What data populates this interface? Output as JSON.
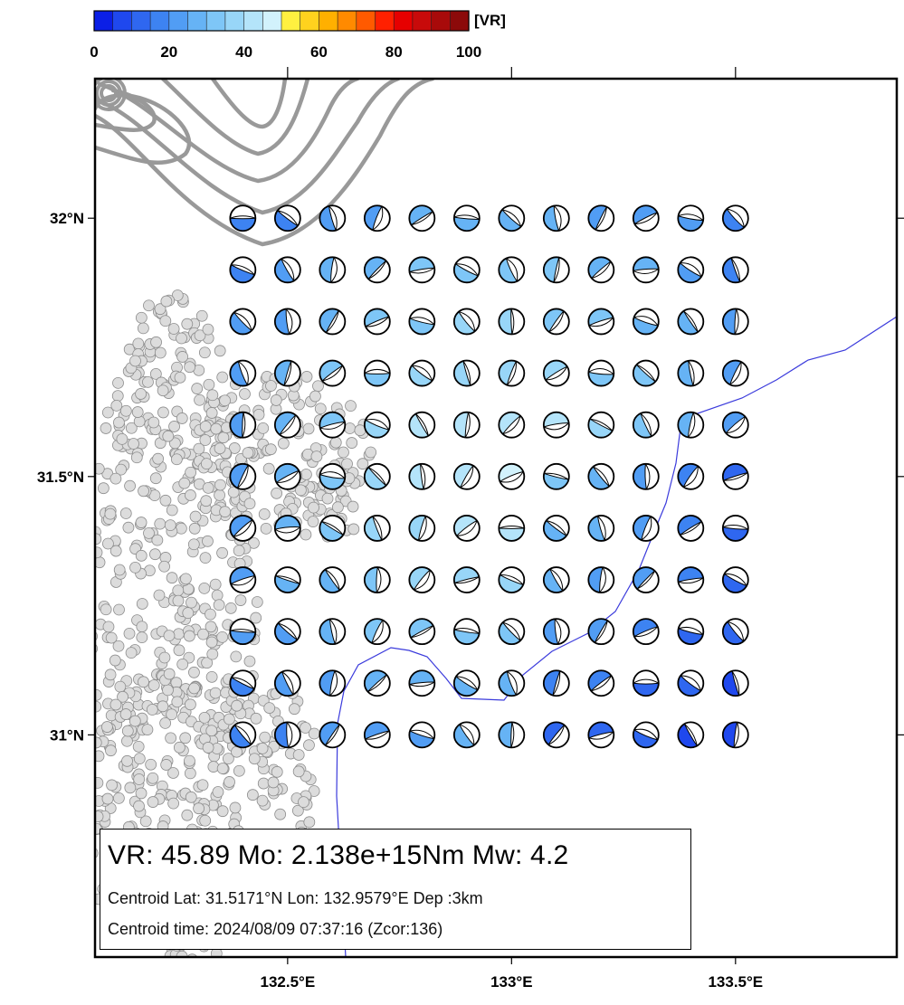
{
  "colorbar": {
    "unit": "[VR]",
    "min": 0,
    "max": 100,
    "tick_values": [
      0,
      20,
      40,
      60,
      80,
      100
    ],
    "tick_labels": [
      "0",
      "20",
      "40",
      "60",
      "80",
      "100"
    ],
    "colors": [
      "#0b1fe6",
      "#1f48ee",
      "#2f67f0",
      "#3d83f2",
      "#519df4",
      "#66b3f5",
      "#7ec6f7",
      "#98d6f8",
      "#b4e4fa",
      "#d2f2fc",
      "#fff040",
      "#ffd21e",
      "#ffb000",
      "#ff8a00",
      "#ff5a00",
      "#ff2000",
      "#e60000",
      "#c80a0a",
      "#a80a0a",
      "#8c0a0a"
    ]
  },
  "map": {
    "lon_range": [
      132.07,
      133.86
    ],
    "lat_range": [
      30.57,
      32.27
    ],
    "lat_ticks": [
      {
        "value": 32.0,
        "label": "32°N"
      },
      {
        "value": 31.5,
        "label": "31.5°N"
      },
      {
        "value": 31.0,
        "label": "31°N"
      }
    ],
    "lon_ticks": [
      {
        "value": 132.5,
        "label": "132.5°E"
      },
      {
        "value": 133.0,
        "label": "133°E"
      },
      {
        "value": 133.5,
        "label": "133.5°E"
      }
    ],
    "grid": {
      "lon_values": [
        132.4,
        132.5,
        132.6,
        132.7,
        132.8,
        132.9,
        133.0,
        133.1,
        133.2,
        133.3,
        133.4,
        133.5
      ],
      "lat_values": [
        32.0,
        31.9,
        31.8,
        31.7,
        31.6,
        31.5,
        31.4,
        31.3,
        31.2,
        31.1,
        31.0
      ]
    },
    "best_solution": {
      "lon": 132.9579,
      "lat": 31.5171,
      "vr": 45.89
    },
    "trench_line_color": "#3b3bdc",
    "seismicity_color": "#dcdcdc",
    "contour_color": "#999999"
  },
  "info": {
    "line1": "VR: 45.89  Mo: 2.138e+15Nm  Mw: 4.2",
    "line2": "Centroid Lat: 31.5171°N  Lon: 132.9579°E  Dep :3km",
    "line3": "Centroid time: 2024/08/09 07:37:16 (Zcor:136)"
  }
}
